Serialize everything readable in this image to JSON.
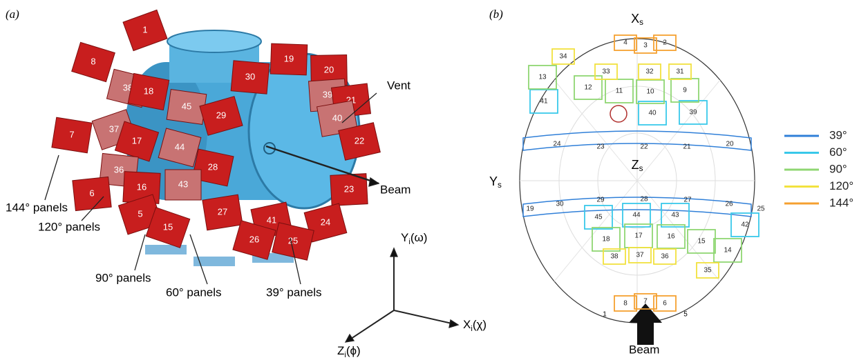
{
  "panel_a": {
    "label": "(a)",
    "panels": [
      "1",
      "8",
      "38",
      "18",
      "45",
      "30",
      "19",
      "20",
      "39",
      "21",
      "40",
      "22",
      "29",
      "37",
      "17",
      "44",
      "28",
      "7",
      "36",
      "16",
      "43",
      "23",
      "6",
      "27",
      "41",
      "24",
      "5",
      "15",
      "26",
      "25"
    ],
    "annotations": {
      "vent": "Vent",
      "beam": "Beam",
      "p144": "144° panels",
      "p120": "120° panels",
      "p90": "90° panels",
      "p60": "60° panels",
      "p39": "39° panels"
    },
    "axes": {
      "y": {
        "main": "Y",
        "sub": "i",
        "rest": "(ω)"
      },
      "x": {
        "main": "X",
        "sub": "i",
        "rest": "(χ)"
      },
      "z": {
        "main": "Z",
        "sub": "i",
        "rest": "(ϕ)"
      }
    }
  },
  "panel_b": {
    "label": "(b)",
    "axes": {
      "x": {
        "main": "X",
        "sub": "s"
      },
      "y": {
        "main": "Y",
        "sub": "s"
      },
      "z": {
        "main": "Z",
        "sub": "s"
      }
    },
    "legend": [
      {
        "name": "39°",
        "color": "#2f7fd8",
        "panels": [
          "24",
          "23",
          "22",
          "21",
          "20",
          "19",
          "30",
          "29",
          "28",
          "27",
          "26",
          "25"
        ]
      },
      {
        "name": "60°",
        "color": "#38c8ea",
        "panels": [
          "41",
          "40",
          "39",
          "45",
          "44",
          "43",
          "42"
        ]
      },
      {
        "name": "90°",
        "color": "#8fd672",
        "panels": [
          "13",
          "12",
          "11",
          "10",
          "9",
          "18",
          "17",
          "16",
          "15",
          "14"
        ]
      },
      {
        "name": "120°",
        "color": "#f2e23e",
        "panels": [
          "34",
          "33",
          "32",
          "31",
          "38",
          "37",
          "36",
          "35"
        ]
      },
      {
        "name": "144°",
        "color": "#f5a030",
        "panels": [
          "4",
          "3",
          "2",
          "8",
          "7",
          "6"
        ]
      }
    ],
    "edge_labels": [
      "1",
      "5"
    ],
    "beam": "Beam"
  }
}
